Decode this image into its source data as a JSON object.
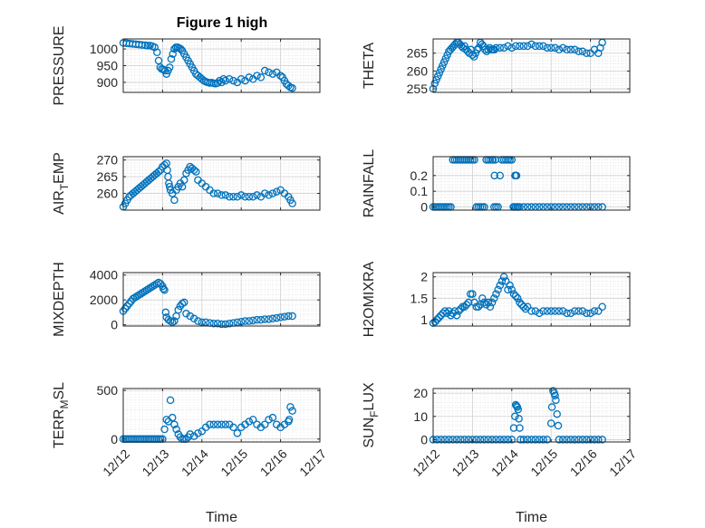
{
  "figure": {
    "title": "Figure 1 high"
  },
  "chart_data": [
    {
      "type": "scatter",
      "ylabel": "PRESSURE",
      "ylim": [
        870,
        1030
      ],
      "yticks": [
        900,
        950,
        1000
      ],
      "xlim": [
        0,
        5
      ],
      "xticks": [
        0,
        1,
        2,
        3,
        4,
        5
      ],
      "xticklabels": [],
      "grid": "major-and-minor",
      "x": [
        0,
        0.08,
        0.16,
        0.24,
        0.32,
        0.4,
        0.48,
        0.56,
        0.62,
        0.68,
        0.74,
        0.8,
        0.86,
        0.9,
        0.94,
        0.98,
        1.02,
        1.06,
        1.1,
        1.14,
        1.18,
        1.22,
        1.26,
        1.3,
        1.34,
        1.38,
        1.42,
        1.46,
        1.5,
        1.55,
        1.6,
        1.65,
        1.7,
        1.75,
        1.8,
        1.85,
        1.9,
        1.95,
        2.0,
        2.05,
        2.1,
        2.15,
        2.2,
        2.25,
        2.3,
        2.35,
        2.4,
        2.45,
        2.5,
        2.55,
        2.6,
        2.7,
        2.8,
        2.9,
        3.0,
        3.1,
        3.2,
        3.3,
        3.4,
        3.5,
        3.6,
        3.7,
        3.8,
        3.9,
        4.0,
        4.05,
        4.1,
        4.15,
        4.2,
        4.25,
        4.3
      ],
      "y": [
        1018,
        1017,
        1016,
        1015,
        1014,
        1013,
        1012,
        1011,
        1010,
        1010,
        1008,
        1005,
        990,
        965,
        945,
        940,
        938,
        935,
        925,
        935,
        945,
        970,
        985,
        1000,
        1005,
        1005,
        1003,
        1000,
        995,
        985,
        975,
        965,
        955,
        945,
        935,
        925,
        920,
        915,
        910,
        905,
        902,
        900,
        898,
        899,
        897,
        896,
        898,
        905,
        900,
        910,
        905,
        910,
        905,
        900,
        910,
        905,
        915,
        910,
        920,
        915,
        935,
        930,
        925,
        930,
        920,
        915,
        905,
        895,
        890,
        885,
        883
      ],
      "annotations": [
        {
          "x": 1.2,
          "y": 890
        }
      ]
    },
    {
      "type": "scatter",
      "ylabel": "THETA",
      "ylim": [
        254,
        269
      ],
      "yticks": [
        255,
        260,
        265
      ],
      "xlim": [
        0,
        5
      ],
      "xticks": [
        0,
        1,
        2,
        3,
        4,
        5
      ],
      "xticklabels": [],
      "grid": "major-and-minor",
      "x": [
        0,
        0.04,
        0.08,
        0.12,
        0.16,
        0.2,
        0.24,
        0.28,
        0.32,
        0.36,
        0.4,
        0.44,
        0.48,
        0.52,
        0.56,
        0.6,
        0.64,
        0.68,
        0.72,
        0.76,
        0.8,
        0.84,
        0.88,
        0.92,
        0.96,
        1.0,
        1.04,
        1.08,
        1.12,
        1.16,
        1.2,
        1.24,
        1.28,
        1.32,
        1.36,
        1.4,
        1.44,
        1.48,
        1.52,
        1.56,
        1.6,
        1.7,
        1.8,
        1.9,
        2.0,
        2.1,
        2.2,
        2.3,
        2.4,
        2.5,
        2.6,
        2.7,
        2.8,
        2.9,
        3.0,
        3.1,
        3.2,
        3.3,
        3.4,
        3.5,
        3.6,
        3.7,
        3.8,
        3.9,
        4.0,
        4.1,
        4.2,
        4.25,
        4.3
      ],
      "y": [
        255,
        256.5,
        257.5,
        258.5,
        259.5,
        260.5,
        261.5,
        262.5,
        263.5,
        264.5,
        265.5,
        266,
        266.5,
        267,
        267.5,
        268,
        268,
        267.5,
        267,
        266.5,
        267,
        266,
        265.5,
        265,
        266,
        264.5,
        264,
        265,
        266,
        266.5,
        268,
        267.5,
        267,
        266,
        265.5,
        266,
        266.5,
        266,
        266,
        266,
        266.5,
        266.5,
        266.5,
        267,
        266.5,
        267,
        267,
        267,
        267,
        267.5,
        267,
        267,
        267,
        266.5,
        266.5,
        266.5,
        266,
        266.5,
        266,
        266,
        266,
        265.5,
        265.5,
        265,
        265,
        266,
        265,
        266.5,
        268
      ]
    },
    {
      "type": "scatter",
      "ylabel": "AIR",
      "ylabel_sub": "T",
      "ylabel_suffix": "EMP",
      "ylim": [
        255,
        271
      ],
      "yticks": [
        260,
        265,
        270
      ],
      "xlim": [
        0,
        5
      ],
      "xticks": [
        0,
        1,
        2,
        3,
        4,
        5
      ],
      "xticklabels": [],
      "grid": "major-and-minor",
      "x": [
        0,
        0.05,
        0.1,
        0.15,
        0.2,
        0.25,
        0.3,
        0.35,
        0.4,
        0.45,
        0.5,
        0.55,
        0.6,
        0.65,
        0.7,
        0.75,
        0.8,
        0.85,
        0.9,
        0.95,
        1.0,
        1.05,
        1.1,
        1.12,
        1.14,
        1.16,
        1.18,
        1.2,
        1.25,
        1.3,
        1.35,
        1.4,
        1.45,
        1.5,
        1.55,
        1.6,
        1.65,
        1.7,
        1.75,
        1.8,
        1.85,
        1.9,
        2.0,
        2.1,
        2.2,
        2.3,
        2.4,
        2.5,
        2.6,
        2.7,
        2.8,
        2.9,
        3.0,
        3.1,
        3.2,
        3.3,
        3.4,
        3.5,
        3.6,
        3.7,
        3.8,
        3.9,
        4.0,
        4.1,
        4.2,
        4.25,
        4.3
      ],
      "y": [
        256,
        257,
        258,
        259,
        259.5,
        260,
        260.5,
        261,
        261.5,
        262,
        262.5,
        263,
        263.5,
        264,
        264.5,
        265,
        265.5,
        266,
        266.5,
        267,
        268,
        268.5,
        269,
        267,
        265,
        263,
        262,
        261,
        260,
        258,
        261,
        262,
        263,
        262,
        264,
        266,
        267,
        268,
        267.5,
        267,
        266.5,
        264,
        263,
        262,
        261,
        260,
        260,
        259.5,
        259.5,
        259,
        259,
        259,
        259.5,
        259,
        259,
        259,
        259.5,
        259,
        260,
        259.5,
        260,
        260.5,
        261,
        260,
        259,
        258,
        257
      ]
    },
    {
      "type": "scatter",
      "ylabel": "RAINFALL",
      "ylim": [
        -0.02,
        0.32
      ],
      "yticks": [
        0,
        0.1,
        0.2
      ],
      "yticklabels": [
        "0",
        "0.1",
        "0.2"
      ],
      "xlim": [
        0,
        5
      ],
      "xticks": [
        0,
        1,
        2,
        3,
        4,
        5
      ],
      "xticklabels": [],
      "grid": "major-and-minor",
      "x": [
        0,
        0.05,
        0.1,
        0.15,
        0.2,
        0.25,
        0.3,
        0.35,
        0.4,
        0.45,
        0.5,
        0.55,
        0.6,
        0.65,
        0.7,
        0.75,
        0.8,
        0.85,
        0.9,
        0.95,
        1.0,
        1.05,
        1.1,
        1.15,
        1.2,
        1.25,
        1.3,
        1.35,
        1.4,
        1.45,
        1.5,
        1.55,
        1.6,
        1.65,
        1.7,
        1.75,
        1.8,
        1.85,
        1.9,
        1.95,
        2.0,
        2.1,
        2.2,
        2.3,
        2.4,
        2.5,
        2.6,
        2.7,
        2.8,
        2.9,
        3.0,
        3.1,
        3.2,
        3.3,
        3.4,
        3.5,
        3.6,
        3.7,
        3.8,
        3.9,
        4.0,
        4.1,
        4.2,
        4.3,
        2.04,
        2.06,
        2.08,
        2.1,
        2.12,
        2.14,
        2.16,
        1.52,
        1.56,
        1.58
      ],
      "y": [
        0,
        0,
        0,
        0,
        0,
        0,
        0,
        0,
        0,
        0,
        0.3,
        0.3,
        0.3,
        0.3,
        0.3,
        0.3,
        0.3,
        0.3,
        0.3,
        0.3,
        0.3,
        0.3,
        0,
        0,
        0,
        0,
        0,
        0.3,
        0.3,
        0.3,
        0.3,
        0,
        0,
        0,
        0.2,
        0.3,
        0.3,
        0.3,
        0.3,
        0.3,
        0.3,
        0,
        0,
        0,
        0,
        0,
        0,
        0,
        0,
        0,
        0,
        0,
        0,
        0,
        0,
        0,
        0,
        0,
        0,
        0,
        0,
        0,
        0,
        0,
        0,
        0,
        0.2,
        0.2,
        0.2,
        0,
        0,
        0.3,
        0.2,
        0.3
      ]
    },
    {
      "type": "scatter",
      "ylabel": "MIXDEPTH",
      "ylim": [
        -100,
        4200
      ],
      "yticks": [
        0,
        2000,
        4000
      ],
      "xlim": [
        0,
        5
      ],
      "xticks": [
        0,
        1,
        2,
        3,
        4,
        5
      ],
      "xticklabels": [],
      "grid": "major-and-minor",
      "x": [
        0,
        0.05,
        0.1,
        0.15,
        0.2,
        0.25,
        0.3,
        0.35,
        0.4,
        0.45,
        0.5,
        0.55,
        0.6,
        0.65,
        0.7,
        0.75,
        0.8,
        0.85,
        0.9,
        0.95,
        1.0,
        1.02,
        1.05,
        1.08,
        1.1,
        1.15,
        1.2,
        1.25,
        1.3,
        1.35,
        1.4,
        1.45,
        1.5,
        1.55,
        1.6,
        1.7,
        1.8,
        1.9,
        2.0,
        2.1,
        2.2,
        2.3,
        2.4,
        2.5,
        2.6,
        2.7,
        2.8,
        2.9,
        3.0,
        3.1,
        3.2,
        3.3,
        3.4,
        3.5,
        3.6,
        3.7,
        3.8,
        3.9,
        4.0,
        4.1,
        4.2,
        4.3
      ],
      "y": [
        1100,
        1300,
        1500,
        1700,
        1900,
        2100,
        2200,
        2300,
        2400,
        2500,
        2600,
        2700,
        2800,
        2900,
        3000,
        3100,
        3200,
        3300,
        3400,
        3300,
        3100,
        2900,
        2800,
        1000,
        600,
        400,
        300,
        200,
        300,
        700,
        1200,
        1500,
        1700,
        1800,
        900,
        700,
        500,
        300,
        200,
        200,
        150,
        100,
        100,
        50,
        50,
        100,
        150,
        200,
        250,
        300,
        300,
        350,
        400,
        400,
        450,
        450,
        500,
        550,
        600,
        650,
        700,
        700
      ]
    },
    {
      "type": "scatter",
      "ylabel": "H2OMIXRA",
      "ylim": [
        0.85,
        2.1
      ],
      "yticks": [
        1,
        1.5,
        2
      ],
      "yticklabels": [
        "1",
        "1.5",
        "2"
      ],
      "xlim": [
        0,
        5
      ],
      "xticks": [
        0,
        1,
        2,
        3,
        4,
        5
      ],
      "xticklabels": [],
      "grid": "major-and-minor",
      "x": [
        0,
        0.05,
        0.1,
        0.15,
        0.2,
        0.25,
        0.3,
        0.35,
        0.4,
        0.45,
        0.5,
        0.55,
        0.6,
        0.65,
        0.7,
        0.75,
        0.8,
        0.85,
        0.9,
        0.95,
        1.0,
        1.05,
        1.1,
        1.15,
        1.2,
        1.25,
        1.3,
        1.35,
        1.4,
        1.45,
        1.5,
        1.55,
        1.6,
        1.65,
        1.7,
        1.75,
        1.8,
        1.85,
        1.9,
        1.95,
        2.0,
        2.05,
        2.1,
        2.15,
        2.2,
        2.25,
        2.3,
        2.35,
        2.4,
        2.5,
        2.6,
        2.7,
        2.8,
        2.9,
        3.0,
        3.1,
        3.2,
        3.3,
        3.4,
        3.5,
        3.6,
        3.7,
        3.8,
        3.9,
        4.0,
        4.1,
        4.2,
        4.3
      ],
      "y": [
        0.92,
        0.95,
        1.0,
        1.05,
        1.1,
        1.15,
        1.2,
        1.15,
        1.2,
        1.1,
        1.15,
        1.2,
        1.1,
        1.2,
        1.25,
        1.3,
        1.3,
        1.35,
        1.4,
        1.6,
        1.6,
        1.4,
        1.3,
        1.3,
        1.35,
        1.5,
        1.4,
        1.35,
        1.4,
        1.3,
        1.4,
        1.5,
        1.6,
        1.7,
        1.8,
        1.9,
        2.0,
        1.9,
        1.7,
        1.8,
        1.7,
        1.6,
        1.55,
        1.5,
        1.4,
        1.35,
        1.3,
        1.25,
        1.3,
        1.2,
        1.2,
        1.15,
        1.2,
        1.2,
        1.2,
        1.2,
        1.2,
        1.2,
        1.15,
        1.15,
        1.2,
        1.2,
        1.2,
        1.15,
        1.15,
        1.2,
        1.2,
        1.3
      ]
    },
    {
      "type": "scatter",
      "ylabel": "TERR",
      "ylabel_sub": "M",
      "ylabel_suffix": "SL",
      "ylim": [
        -30,
        520
      ],
      "yticks": [
        0,
        500
      ],
      "xlim": [
        0,
        5
      ],
      "xticks": [
        0,
        1,
        2,
        3,
        4,
        5
      ],
      "xticklabels": [
        "12/12",
        "12/13",
        "12/14",
        "12/15",
        "12/16",
        "12/17"
      ],
      "xlabel": "Time",
      "grid": "major-and-minor",
      "x": [
        0,
        0.05,
        0.1,
        0.15,
        0.2,
        0.25,
        0.3,
        0.35,
        0.4,
        0.45,
        0.5,
        0.55,
        0.6,
        0.65,
        0.7,
        0.75,
        0.8,
        0.85,
        0.9,
        0.95,
        1.0,
        1.05,
        1.1,
        1.15,
        1.2,
        1.25,
        1.3,
        1.35,
        1.4,
        1.45,
        1.5,
        1.55,
        1.6,
        1.65,
        1.7,
        1.8,
        1.9,
        2.0,
        2.1,
        2.2,
        2.3,
        2.4,
        2.5,
        2.6,
        2.7,
        2.8,
        2.9,
        3.0,
        3.1,
        3.2,
        3.3,
        3.4,
        3.5,
        3.6,
        3.7,
        3.8,
        3.9,
        4.0,
        4.1,
        4.2,
        4.22,
        4.25,
        4.3
      ],
      "y": [
        0,
        0,
        0,
        0,
        0,
        0,
        0,
        0,
        0,
        0,
        0,
        0,
        0,
        0,
        0,
        0,
        0,
        0,
        0,
        0,
        0,
        100,
        200,
        180,
        400,
        220,
        150,
        100,
        50,
        20,
        0,
        0,
        0,
        20,
        50,
        30,
        60,
        80,
        120,
        150,
        150,
        150,
        150,
        150,
        150,
        120,
        60,
        120,
        150,
        180,
        200,
        150,
        120,
        150,
        200,
        220,
        150,
        120,
        150,
        180,
        200,
        330,
        290
      ]
    },
    {
      "type": "scatter",
      "ylabel": "SUN",
      "ylabel_sub": "F",
      "ylabel_suffix": "LUX",
      "ylim": [
        -1,
        22
      ],
      "yticks": [
        0,
        10,
        20
      ],
      "xlim": [
        0,
        5
      ],
      "xticks": [
        0,
        1,
        2,
        3,
        4,
        5
      ],
      "xticklabels": [
        "12/12",
        "12/13",
        "12/14",
        "12/15",
        "12/16",
        "12/17"
      ],
      "xlabel": "Time",
      "grid": "major-and-minor",
      "x": [
        0,
        0.1,
        0.2,
        0.3,
        0.4,
        0.5,
        0.6,
        0.7,
        0.8,
        0.9,
        1.0,
        1.1,
        1.2,
        1.3,
        1.4,
        1.5,
        1.6,
        1.7,
        1.8,
        1.9,
        2.0,
        2.05,
        2.08,
        2.1,
        2.12,
        2.14,
        2.16,
        2.18,
        2.2,
        2.22,
        2.3,
        2.4,
        2.5,
        2.6,
        2.7,
        2.8,
        2.9,
        3.0,
        3.02,
        3.05,
        3.08,
        3.1,
        3.12,
        3.15,
        3.18,
        3.2,
        3.3,
        3.4,
        3.5,
        3.6,
        3.7,
        3.8,
        3.9,
        4.0,
        4.1,
        4.2,
        4.3
      ],
      "y": [
        0,
        0,
        0,
        0,
        0,
        0,
        0,
        0,
        0,
        0,
        0,
        0,
        0,
        0,
        0,
        0,
        0,
        0,
        0,
        0,
        0,
        5,
        10,
        15,
        14.5,
        14,
        13,
        9,
        5,
        0,
        0,
        0,
        0,
        0,
        0,
        0,
        0,
        7,
        14,
        21,
        20,
        19,
        17,
        11,
        6,
        0,
        0,
        0,
        0,
        0,
        0,
        0,
        0,
        0,
        0,
        0,
        0
      ]
    }
  ],
  "colors": {
    "marker": "#0072BD",
    "axes": "#262626",
    "grid": "#dcdcdc",
    "background": "#ffffff"
  }
}
